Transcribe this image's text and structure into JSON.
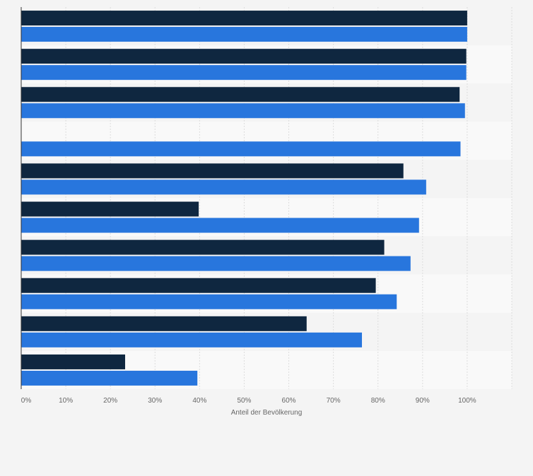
{
  "chart_data": {
    "type": "bar",
    "orientation": "horizontal",
    "categories": [
      "",
      "",
      "",
      "",
      "",
      "",
      "",
      "",
      "",
      ""
    ],
    "series": [
      {
        "color": "#0f2740",
        "values": [
          100,
          99.8,
          98.3,
          null,
          85.7,
          39.8,
          81.4,
          79.5,
          64.0,
          23.3
        ]
      },
      {
        "color": "#2876dd",
        "values": [
          100,
          99.8,
          99.5,
          98.5,
          90.8,
          89.2,
          87.3,
          84.2,
          76.4,
          39.5
        ]
      }
    ],
    "xlabel": "Anteil der Bevölkerung",
    "xlim": [
      0,
      110
    ],
    "x_ticks": [
      "0%",
      "10%",
      "20%",
      "30%",
      "40%",
      "50%",
      "60%",
      "70%",
      "80%",
      "90%",
      "100%"
    ],
    "grid": true,
    "legend": "none"
  }
}
